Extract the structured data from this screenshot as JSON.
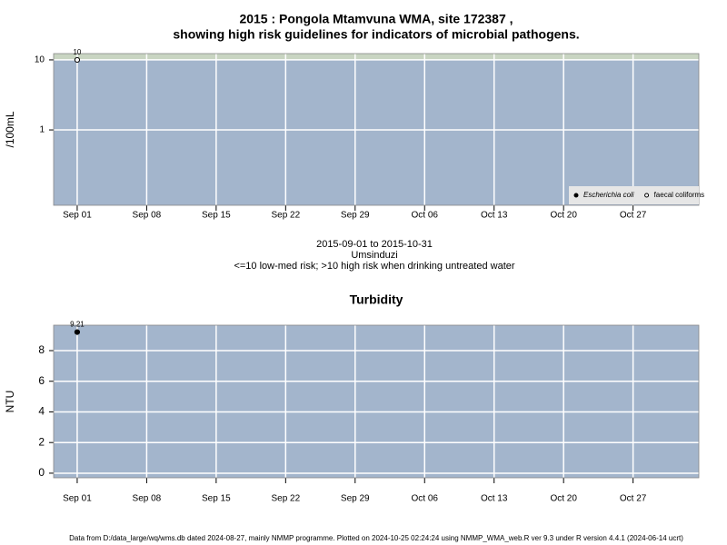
{
  "chart_data": [
    {
      "type": "scatter",
      "title": [
        "2015 : Pongola Mtamvuna WMA, site 172387 ,",
        "showing high risk guidelines for indicators of microbial pathogens."
      ],
      "notes": [
        "2015-09-01 to 2015-10-31",
        "Umsinduzi",
        "<=10 low-med risk; >10 high risk when drinking untreated water"
      ],
      "ylabel": "/100mL",
      "log_y": true,
      "grid": true,
      "high_risk_from": 10,
      "band_color": "#c9d5c2",
      "legend": "lower right",
      "x": [
        "2015-09-01"
      ],
      "xlim": [
        "2015-08-29T15:00:00Z",
        "2015-11-02T15:00:00Z"
      ],
      "xticks": [
        {
          "value": "2015-09-01",
          "label": "Sep 01"
        },
        {
          "value": "2015-09-08",
          "label": "Sep 08"
        },
        {
          "value": "2015-09-15",
          "label": "Sep 15"
        },
        {
          "value": "2015-09-22",
          "label": "Sep 22"
        },
        {
          "value": "2015-09-29",
          "label": "Sep 29"
        },
        {
          "value": "2015-10-06",
          "label": "Oct 06"
        },
        {
          "value": "2015-10-13",
          "label": "Oct 13"
        },
        {
          "value": "2015-10-20",
          "label": "Oct 20"
        },
        {
          "value": "2015-10-27",
          "label": "Oct 27"
        }
      ],
      "ylim": [
        0.084,
        12.3
      ],
      "yticks": [
        1,
        10
      ],
      "series": [
        {
          "name": "Escherichia coli",
          "color": "#000000",
          "filled": true,
          "values": [
            null
          ]
        },
        {
          "name": "faecal coliforms",
          "color": "#000000",
          "filled": false,
          "values": [
            10
          ]
        }
      ]
    },
    {
      "type": "scatter",
      "title": [
        "Turbidity"
      ],
      "ylabel": "NTU",
      "log_y": false,
      "grid": true,
      "x": [
        "2015-09-01"
      ],
      "xlim": [
        "2015-08-29T15:00:00Z",
        "2015-11-02T15:00:00Z"
      ],
      "xticks": [
        {
          "value": "2015-09-01",
          "label": "Sep 01"
        },
        {
          "value": "2015-09-08",
          "label": "Sep 08"
        },
        {
          "value": "2015-09-15",
          "label": "Sep 15"
        },
        {
          "value": "2015-09-22",
          "label": "Sep 22"
        },
        {
          "value": "2015-09-29",
          "label": "Sep 29"
        },
        {
          "value": "2015-10-06",
          "label": "Oct 06"
        },
        {
          "value": "2015-10-13",
          "label": "Oct 13"
        },
        {
          "value": "2015-10-20",
          "label": "Oct 20"
        },
        {
          "value": "2015-10-27",
          "label": "Oct 27"
        }
      ],
      "ylim": [
        -0.3,
        9.66
      ],
      "yticks": [
        0,
        2,
        4,
        6,
        8
      ],
      "series": [
        {
          "color": "#000000",
          "filled": true,
          "values": [
            9.21
          ]
        }
      ]
    }
  ],
  "footer": "Data from D:/data_large/wq/wms.db dated 2024-08-27, mainly NMMP programme. Plotted on 2024-10-25 02:24:24 using NMMP_WMA_web.R ver 9.3 under R version 4.4.1 (2024-06-14 ucrt)"
}
